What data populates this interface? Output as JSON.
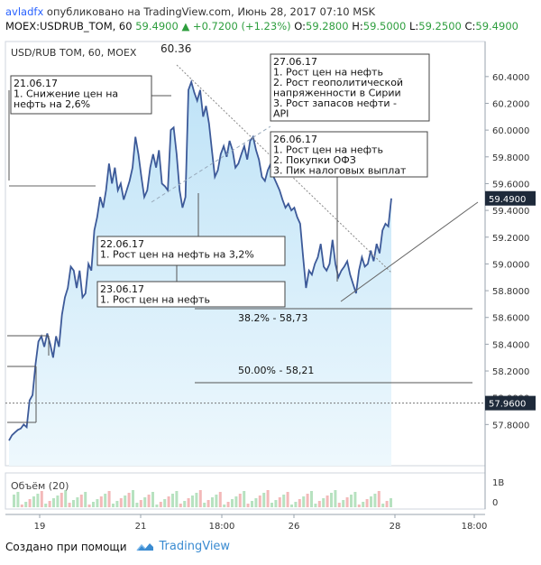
{
  "header": {
    "author": "avladfx",
    "published_text": "опубликовано на TradingView.com, Июнь 28, 2017 07:10 MSK",
    "symbol_line": "MOEX:USDRUB_TOM, 60",
    "last_price": "59.4900",
    "change": "▲ +0.7200 (+1.23%)",
    "ohlc": {
      "o_label": "O:",
      "o": "59.2800",
      "h_label": "H:",
      "h": "59.5000",
      "l_label": "L:",
      "l": "59.2500",
      "c_label": "C:",
      "c": "59.4900"
    }
  },
  "footer": {
    "created_with": "Создано при помощи",
    "brand": "TradingView"
  },
  "colors": {
    "line": "#3d5a99",
    "fill_top": "#bfe3f7",
    "fill_bottom": "#eef8fd",
    "volume_up": "#b7e2c0",
    "volume_down": "#f3b9b9",
    "price_tag": "#1e2a3a"
  },
  "chart_data": {
    "type": "area",
    "title": "USD/RUB TOM, 60, MOEX",
    "ylim": [
      57.6,
      60.5
    ],
    "y_ticks": [
      "60.4000",
      "60.2000",
      "60.0000",
      "59.8000",
      "59.6000",
      "59.4000",
      "59.2000",
      "59.0000",
      "58.8000",
      "58.6000",
      "58.4000",
      "58.2000",
      "58.0000",
      "57.8000"
    ],
    "x_ticks": [
      "19",
      "21",
      "18:00",
      "26",
      "28",
      "18:00"
    ],
    "last_value_label": "59.4900",
    "dotted_level": 57.96,
    "dotted_level_label": "57.9600",
    "peak_label": "60.36",
    "series": [
      {
        "values": [
          57.68,
          57.72,
          57.74,
          57.76,
          57.77,
          57.8,
          57.78,
          57.98,
          58.02,
          58.25,
          58.42,
          58.46,
          58.38,
          58.48,
          58.4,
          58.3,
          58.46,
          58.38,
          58.62,
          58.75,
          58.82,
          58.98,
          58.95,
          58.82,
          58.95,
          58.75,
          58.78,
          59.0,
          58.95,
          59.25,
          59.35,
          59.5,
          59.42,
          59.55,
          59.75,
          59.6,
          59.72,
          59.55,
          59.6,
          59.48,
          59.55,
          59.62,
          59.72,
          59.95,
          59.82,
          59.65,
          59.5,
          59.55,
          59.72,
          59.82,
          59.72,
          59.85,
          59.6,
          59.58,
          59.55,
          60.0,
          60.02,
          59.82,
          59.55,
          59.42,
          59.5,
          60.3,
          60.36,
          60.28,
          60.22,
          60.3,
          60.1,
          60.18,
          60.05,
          59.85,
          59.65,
          59.7,
          59.82,
          59.88,
          59.8,
          59.92,
          59.85,
          59.72,
          59.75,
          59.82,
          59.88,
          59.78,
          59.92,
          59.95,
          59.85,
          59.78,
          59.65,
          59.62,
          59.7,
          59.75,
          59.65,
          59.6,
          59.55,
          59.48,
          59.42,
          59.45,
          59.4,
          59.42,
          59.35,
          59.3,
          59.05,
          58.82,
          58.95,
          58.92,
          59.0,
          59.05,
          59.15,
          58.98,
          58.95,
          59.0,
          59.18,
          59.0,
          58.9,
          58.95,
          58.98,
          59.02,
          58.92,
          58.85,
          58.78,
          58.95,
          59.05,
          58.98,
          59.0,
          59.1,
          59.02,
          59.15,
          59.08,
          59.25,
          59.3,
          59.28,
          59.49
        ]
      }
    ],
    "volume": {
      "title": "Объём (20)",
      "y_labels": [
        "1B",
        "0"
      ]
    },
    "annotations": [
      {
        "lines": [
          "21.06.17",
          "1. Снижение цен на",
          "нефть на 2,6%"
        ]
      },
      {
        "lines": [
          "22.06.17",
          "1. Рост цен на нефть на 3,2%"
        ]
      },
      {
        "lines": [
          "23.06.17",
          "1. Рост цен на нефть"
        ]
      },
      {
        "lines": [
          "27.06.17",
          "1. Рост цен на нефть",
          "2. Рост геополитической",
          "напряженности в Сирии",
          "3. Рост запасов нефти -",
          "API"
        ]
      },
      {
        "lines": [
          "26.06.17",
          "1. Рост цен на нефть",
          "2. Покупки ОФЗ",
          "3. Пик налоговых выплат"
        ]
      }
    ],
    "fib_levels": [
      {
        "label": "38.2% - 58,73",
        "value": 58.73
      },
      {
        "label": "50.00% - 58,21",
        "value": 58.21
      }
    ]
  }
}
